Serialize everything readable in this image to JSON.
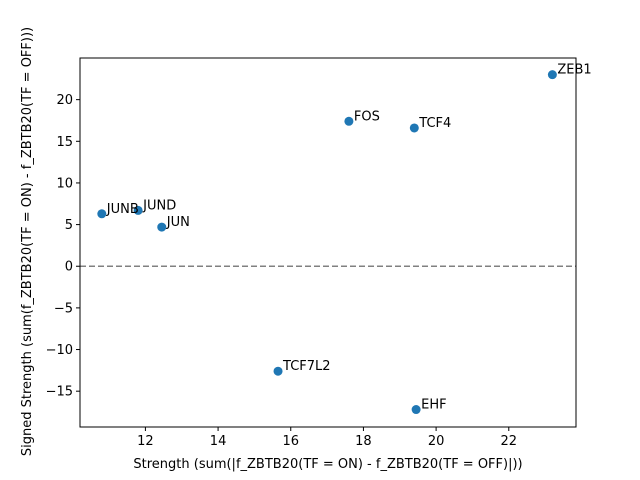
{
  "chart_data": {
    "type": "scatter",
    "title": "",
    "xlabel": "Strength (sum(|f_ZBTB20(TF = ON) - f_ZBTB20(TF = OFF)|))",
    "ylabel": "Signed Strength (sum(f_ZBTB20(TF = ON) - f_ZBTB20(TF = OFF)))",
    "xlim": [
      10.2,
      23.85
    ],
    "ylim": [
      -19.3,
      25.0
    ],
    "xticks": [
      12,
      14,
      16,
      18,
      20,
      22
    ],
    "yticks": [
      -15,
      -10,
      -5,
      0,
      5,
      10,
      15,
      20
    ],
    "xtick_labels": [
      "12",
      "14",
      "16",
      "18",
      "20",
      "22"
    ],
    "ytick_labels": [
      "−15",
      "−10",
      "−5",
      "0",
      "5",
      "10",
      "15",
      "20"
    ],
    "grid": false,
    "reference_line": {
      "y": 0,
      "style": "dashed",
      "color": "#808080"
    },
    "point_color": "#1f77b4",
    "points": [
      {
        "label": "ZEB1",
        "x": 23.2,
        "y": 23.0
      },
      {
        "label": "FOS",
        "x": 17.6,
        "y": 17.4
      },
      {
        "label": "TCF4",
        "x": 19.4,
        "y": 16.6
      },
      {
        "label": "JUNB",
        "x": 10.8,
        "y": 6.3
      },
      {
        "label": "JUND",
        "x": 11.8,
        "y": 6.7
      },
      {
        "label": "JUN",
        "x": 12.45,
        "y": 4.7
      },
      {
        "label": "TCF7L2",
        "x": 15.65,
        "y": -12.6
      },
      {
        "label": "EHF",
        "x": 19.45,
        "y": -17.2
      }
    ]
  }
}
